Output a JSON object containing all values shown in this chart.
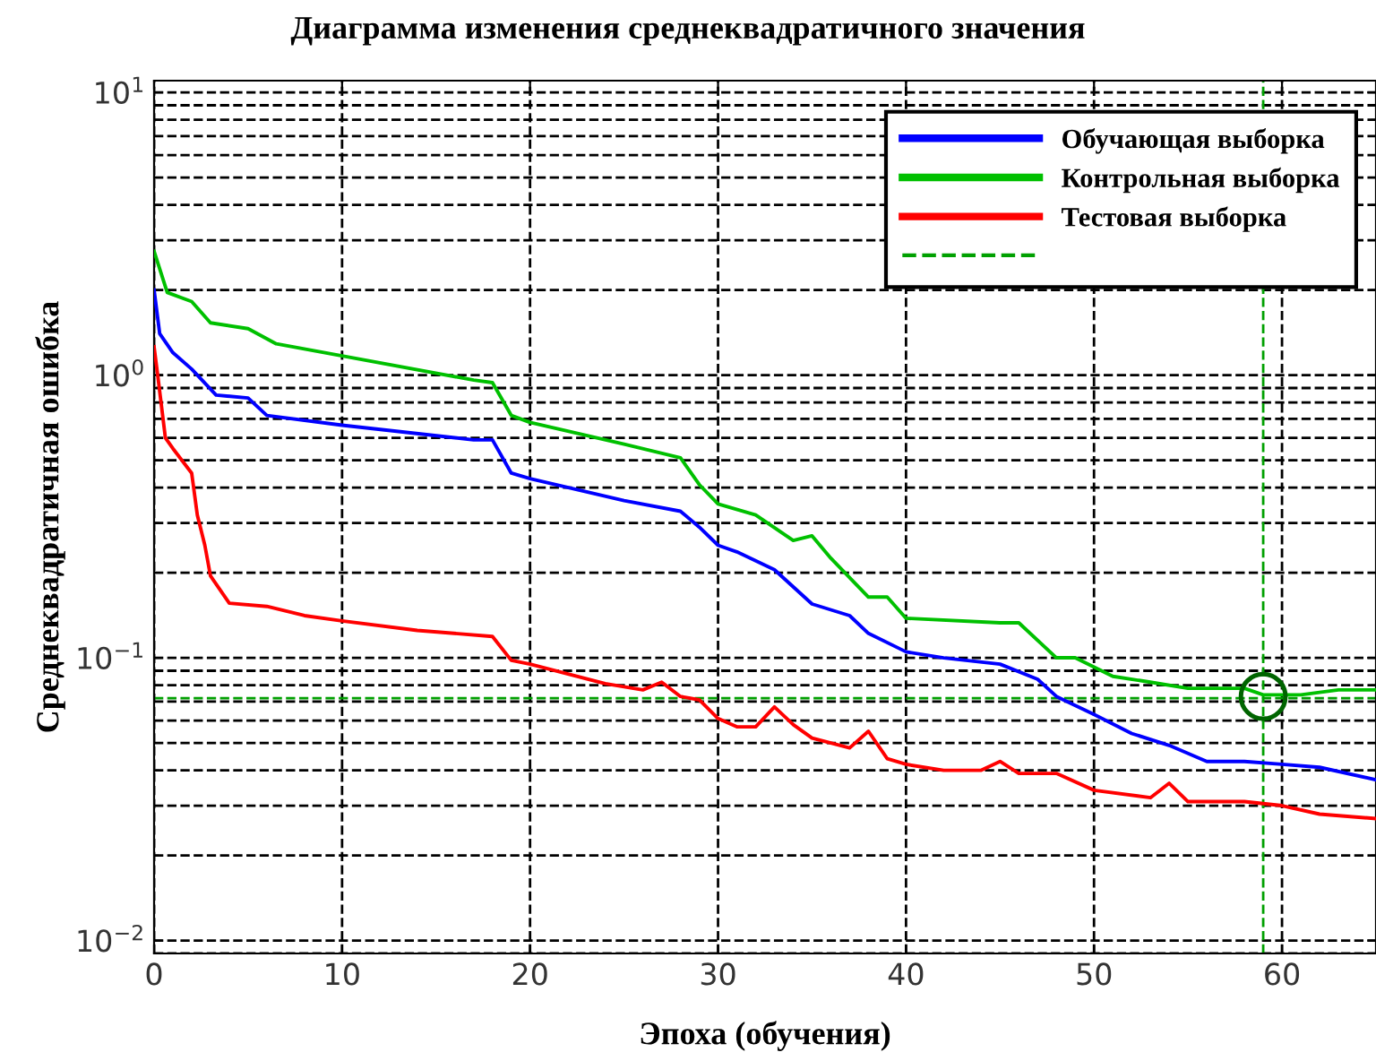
{
  "chart_data": {
    "type": "line",
    "title": "Диаграмма изменения среднеквадратичного значения",
    "xlabel": "Эпоха (обучения)",
    "ylabel": "Среднеквадратичная ошибка",
    "log": "y",
    "grid": true,
    "legend": "top right",
    "line_style": "solid",
    "xlim": [
      0,
      65
    ],
    "xticks": [
      0,
      10,
      20,
      30,
      40,
      50,
      60
    ],
    "ylim": [
      0.009,
      11
    ],
    "yticks": [
      {
        "value": 0.01,
        "label": "10$^{−2}$"
      },
      {
        "value": 0.1,
        "label": "10$^{−1}$"
      },
      {
        "value": 1,
        "label": "10$^{0}$"
      },
      {
        "value": 10,
        "label": "10$^{1}$"
      }
    ],
    "series": [
      {
        "name": "Обучающая выборка",
        "color": "#0000ff",
        "x": [
          0,
          0.3,
          1,
          2,
          3.3,
          5,
          6,
          10,
          17,
          18,
          19,
          20,
          25,
          28,
          29,
          30,
          31,
          33,
          35,
          37,
          38,
          40,
          42,
          45,
          47,
          48,
          50,
          52,
          54,
          56,
          58,
          60,
          62,
          65
        ],
        "values": [
          2.0,
          1.4,
          1.2,
          1.05,
          0.85,
          0.83,
          0.72,
          0.665,
          0.59,
          0.59,
          0.45,
          0.43,
          0.36,
          0.33,
          0.29,
          0.25,
          0.237,
          0.205,
          0.155,
          0.141,
          0.122,
          0.105,
          0.1,
          0.095,
          0.084,
          0.073,
          0.063,
          0.054,
          0.049,
          0.043,
          0.043,
          0.042,
          0.041,
          0.037
        ]
      },
      {
        "name": "Контрольная выборка",
        "color": "#00c000",
        "x": [
          0,
          0.7,
          2,
          3,
          5,
          6.5,
          10,
          17,
          18,
          19,
          20,
          25,
          28,
          29,
          30,
          32,
          34,
          35,
          36,
          38,
          39,
          40,
          45,
          46,
          48,
          49,
          51,
          53,
          55,
          58,
          59,
          61,
          63,
          65
        ],
        "values": [
          2.74,
          1.96,
          1.82,
          1.53,
          1.46,
          1.29,
          1.17,
          0.96,
          0.94,
          0.72,
          0.68,
          0.57,
          0.51,
          0.41,
          0.35,
          0.32,
          0.26,
          0.27,
          0.225,
          0.164,
          0.164,
          0.138,
          0.133,
          0.133,
          0.1,
          0.1,
          0.086,
          0.082,
          0.078,
          0.078,
          0.074,
          0.074,
          0.077,
          0.077
        ]
      },
      {
        "name": "Тестовая выборка",
        "color": "#ff0000",
        "x": [
          0,
          0.2,
          0.6,
          1,
          2,
          2.3,
          2.7,
          3,
          4,
          6,
          8,
          10,
          14,
          18,
          19,
          20,
          24,
          26,
          27,
          28,
          29,
          30,
          31,
          32,
          33,
          34,
          35,
          37,
          38,
          39,
          40,
          42,
          44,
          45,
          46,
          48,
          50,
          53,
          54,
          55,
          58,
          60,
          62,
          65
        ],
        "values": [
          1.26,
          0.99,
          0.6,
          0.55,
          0.45,
          0.32,
          0.25,
          0.195,
          0.156,
          0.152,
          0.141,
          0.135,
          0.125,
          0.119,
          0.098,
          0.095,
          0.081,
          0.077,
          0.082,
          0.073,
          0.071,
          0.061,
          0.057,
          0.057,
          0.067,
          0.058,
          0.052,
          0.048,
          0.055,
          0.044,
          0.042,
          0.04,
          0.04,
          0.043,
          0.039,
          0.039,
          0.034,
          0.032,
          0.036,
          0.031,
          0.031,
          0.03,
          0.028,
          0.027
        ]
      },
      {
        "type": "scatter",
        "marker": "circle",
        "color": "#006400",
        "x": [
          59
        ],
        "values": [
          0.073
        ]
      }
    ],
    "ref_lines": [
      {
        "axis": "x",
        "value": 59,
        "color": "#00a000",
        "line_style": "dashed"
      },
      {
        "axis": "y",
        "value": 0.072,
        "color": "#00a000",
        "line_style": "dashed"
      }
    ]
  }
}
